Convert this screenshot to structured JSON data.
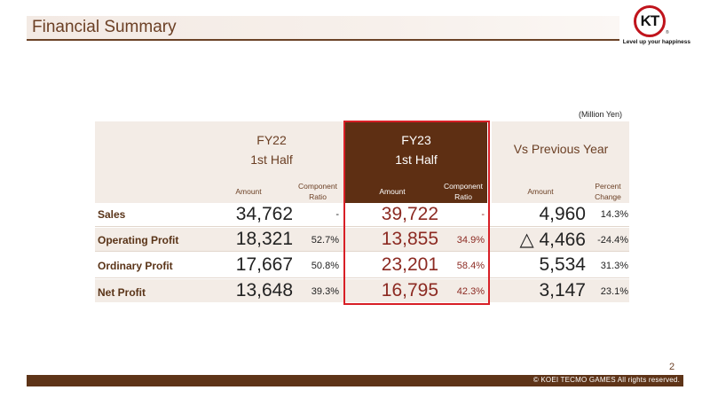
{
  "header": {
    "title": "Financial Summary",
    "logo_mark": "KT",
    "logo_reg": "®",
    "tagline": "Level up your happiness"
  },
  "unit_note": "(Million Yen)",
  "columns": {
    "fy22": {
      "line1": "FY22",
      "line2": "1st Half",
      "amount_label": "Amount",
      "ratio_label_1": "Component",
      "ratio_label_2": "Ratio"
    },
    "fy23": {
      "line1": "FY23",
      "line2": "1st Half",
      "amount_label": "Amount",
      "ratio_label_1": "Component",
      "ratio_label_2": "Ratio"
    },
    "vs": {
      "label": "Vs Previous Year",
      "amount_label": "Amount",
      "ratio_label_1": "Percent",
      "ratio_label_2": "Change"
    }
  },
  "rows": [
    {
      "label": "Sales",
      "fy22_amount": "34,762",
      "fy22_ratio": "-",
      "fy23_amount": "39,722",
      "fy23_ratio": "-",
      "vs_amount": "4,960",
      "vs_change": "14.3%"
    },
    {
      "label": "Operating Profit",
      "fy22_amount": "18,321",
      "fy22_ratio": "52.7%",
      "fy23_amount": "13,855",
      "fy23_ratio": "34.9%",
      "vs_amount": "△ 4,466",
      "vs_change": "-24.4%"
    },
    {
      "label": "Ordinary Profit",
      "fy22_amount": "17,667",
      "fy22_ratio": "50.8%",
      "fy23_amount": "23,201",
      "fy23_ratio": "58.4%",
      "vs_amount": "5,534",
      "vs_change": "31.3%"
    },
    {
      "label": "Net Profit",
      "fy22_amount": "13,648",
      "fy22_ratio": "39.3%",
      "fy23_amount": "16,795",
      "fy23_ratio": "42.3%",
      "vs_amount": "3,147",
      "vs_change": "23.1%"
    }
  ],
  "footer": {
    "page_number": "2",
    "copyright": "© KOEI TECMO GAMES All rights reserved."
  },
  "colors": {
    "brand_brown": "#5e3418",
    "highlight_red": "#d81f26",
    "value_red": "#8c2a22",
    "logo_red": "#c0141c"
  }
}
